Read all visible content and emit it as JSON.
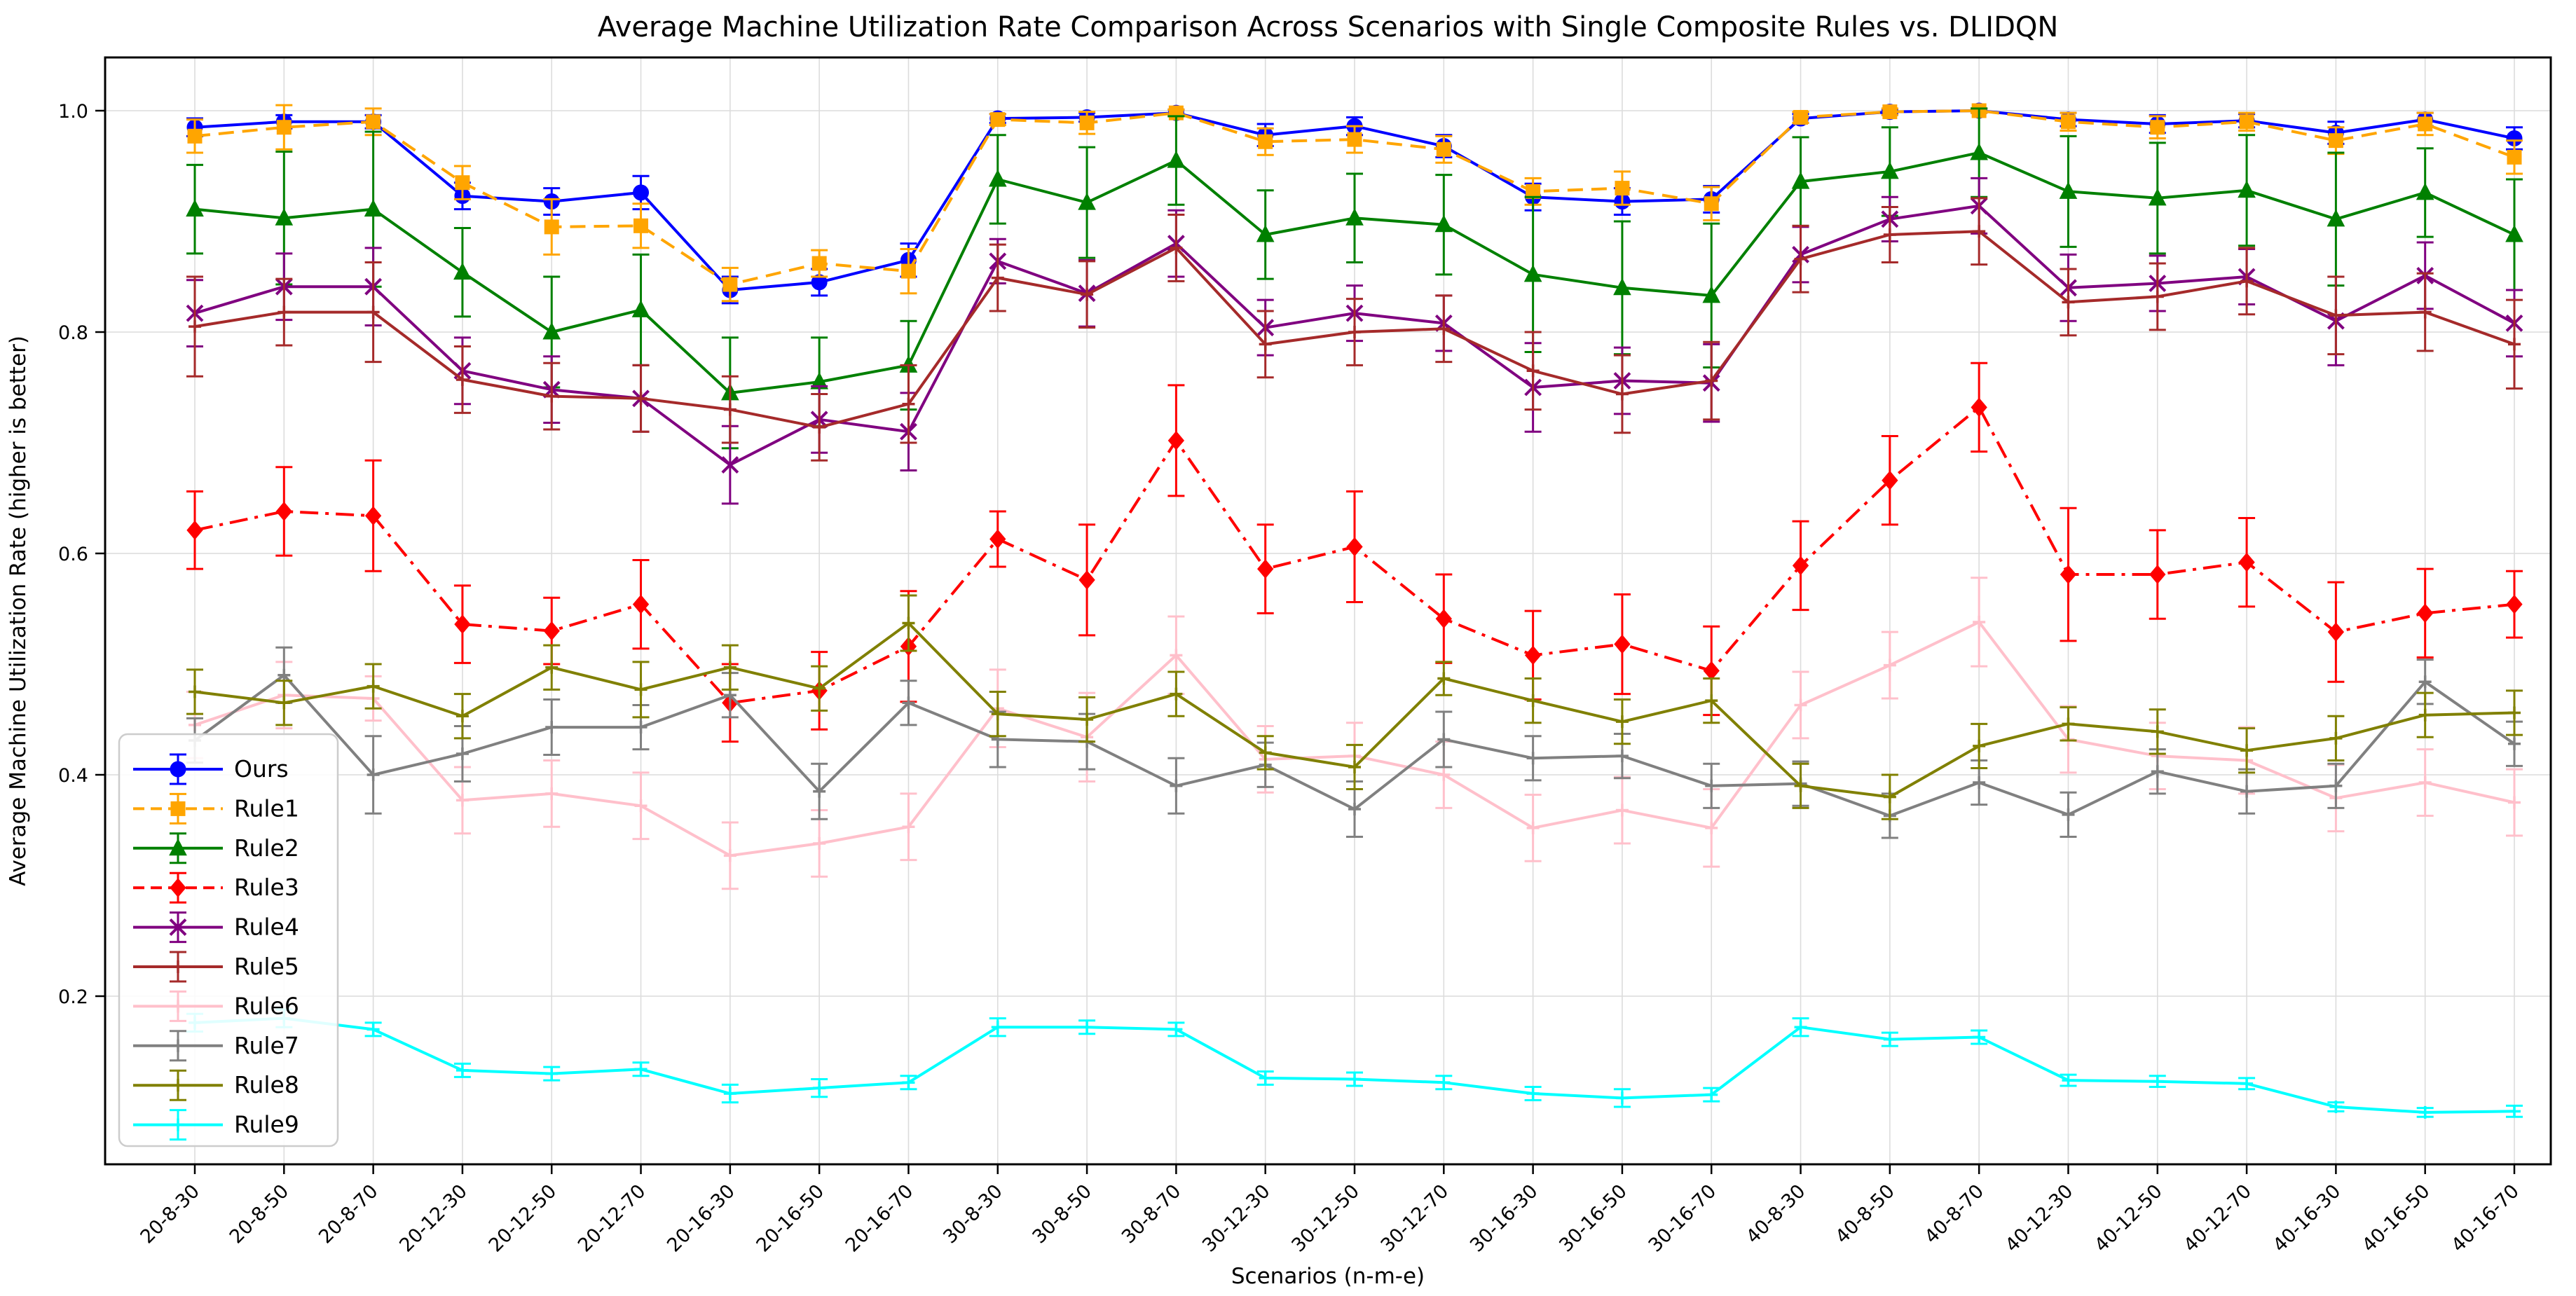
{
  "chart_data": {
    "type": "line",
    "title": "Average Machine Utilization Rate Comparison Across Scenarios with Single Composite Rules vs. DLIDQN",
    "xlabel": "Scenarios (n-m-e)",
    "ylabel": "Average Machine Utilization Rate (higher is better)",
    "grid": true,
    "legend_position": "lower-left",
    "ylim": [
      0.05,
      1.048
    ],
    "yticks": [
      0.2,
      0.4,
      0.6,
      0.8,
      1.0
    ],
    "categories": [
      "20-8-30",
      "20-8-50",
      "20-8-70",
      "20-12-30",
      "20-12-50",
      "20-12-70",
      "20-16-30",
      "20-16-50",
      "20-16-70",
      "30-8-30",
      "30-8-50",
      "30-8-70",
      "30-12-30",
      "30-12-50",
      "30-12-70",
      "30-16-30",
      "30-16-50",
      "30-16-70",
      "40-8-30",
      "40-8-50",
      "40-8-70",
      "40-12-30",
      "40-12-50",
      "40-12-70",
      "40-16-30",
      "40-16-50",
      "40-16-70"
    ],
    "series": [
      {
        "name": "Ours",
        "color": "#0000ff",
        "linestyle": "solid",
        "marker": "circle",
        "values": [
          0.985,
          0.99,
          0.99,
          0.923,
          0.918,
          0.926,
          0.838,
          0.845,
          0.865,
          0.993,
          0.994,
          0.998,
          0.978,
          0.986,
          0.968,
          0.922,
          0.918,
          0.92,
          0.993,
          0.999,
          1.0,
          0.992,
          0.988,
          0.991,
          0.98,
          0.992,
          0.975
        ],
        "errors": [
          0.008,
          0.006,
          0.006,
          0.012,
          0.012,
          0.015,
          0.012,
          0.012,
          0.015,
          0.004,
          0.004,
          0.003,
          0.01,
          0.008,
          0.01,
          0.012,
          0.012,
          0.012,
          0.004,
          0.002,
          0.002,
          0.006,
          0.008,
          0.006,
          0.01,
          0.006,
          0.01
        ]
      },
      {
        "name": "Rule1",
        "color": "#ffa500",
        "linestyle": "dashed",
        "marker": "square",
        "values": [
          0.977,
          0.985,
          0.99,
          0.935,
          0.895,
          0.896,
          0.843,
          0.862,
          0.855,
          0.992,
          0.989,
          0.998,
          0.972,
          0.974,
          0.965,
          0.927,
          0.93,
          0.916,
          0.994,
          0.999,
          1.0,
          0.99,
          0.985,
          0.99,
          0.973,
          0.988,
          0.958
        ],
        "errors": [
          0.015,
          0.02,
          0.012,
          0.015,
          0.025,
          0.02,
          0.015,
          0.012,
          0.02,
          0.005,
          0.01,
          0.003,
          0.012,
          0.012,
          0.012,
          0.012,
          0.015,
          0.015,
          0.005,
          0.003,
          0.002,
          0.008,
          0.01,
          0.008,
          0.012,
          0.01,
          0.015
        ]
      },
      {
        "name": "Rule2",
        "color": "#008000",
        "linestyle": "solid",
        "marker": "triangle",
        "values": [
          0.911,
          0.903,
          0.911,
          0.854,
          0.8,
          0.82,
          0.745,
          0.755,
          0.77,
          0.938,
          0.917,
          0.955,
          0.888,
          0.903,
          0.897,
          0.852,
          0.84,
          0.833,
          0.936,
          0.945,
          0.962,
          0.927,
          0.921,
          0.928,
          0.902,
          0.926,
          0.888
        ],
        "errors": [
          0.04,
          0.06,
          0.07,
          0.04,
          0.05,
          0.05,
          0.05,
          0.04,
          0.04,
          0.04,
          0.05,
          0.04,
          0.04,
          0.04,
          0.045,
          0.07,
          0.06,
          0.065,
          0.04,
          0.04,
          0.04,
          0.05,
          0.05,
          0.05,
          0.06,
          0.04,
          0.05
        ]
      },
      {
        "name": "Rule3",
        "color": "#ff0000",
        "linestyle": "dashdot",
        "marker": "diamond",
        "values": [
          0.621,
          0.638,
          0.634,
          0.536,
          0.53,
          0.554,
          0.465,
          0.476,
          0.516,
          0.613,
          0.576,
          0.702,
          0.586,
          0.606,
          0.541,
          0.508,
          0.518,
          0.494,
          0.589,
          0.666,
          0.732,
          0.581,
          0.581,
          0.592,
          0.529,
          0.546,
          0.554
        ],
        "errors": [
          0.035,
          0.04,
          0.05,
          0.035,
          0.03,
          0.04,
          0.035,
          0.035,
          0.05,
          0.025,
          0.05,
          0.05,
          0.04,
          0.05,
          0.04,
          0.04,
          0.045,
          0.04,
          0.04,
          0.04,
          0.04,
          0.06,
          0.04,
          0.04,
          0.045,
          0.04,
          0.03
        ]
      },
      {
        "name": "Rule4",
        "color": "#800080",
        "linestyle": "solid",
        "marker": "x",
        "values": [
          0.817,
          0.841,
          0.841,
          0.765,
          0.748,
          0.74,
          0.68,
          0.721,
          0.71,
          0.864,
          0.835,
          0.88,
          0.804,
          0.817,
          0.808,
          0.75,
          0.756,
          0.754,
          0.87,
          0.902,
          0.914,
          0.84,
          0.844,
          0.85,
          0.81,
          0.851,
          0.808
        ],
        "errors": [
          0.03,
          0.03,
          0.035,
          0.03,
          0.03,
          0.03,
          0.035,
          0.03,
          0.035,
          0.02,
          0.03,
          0.03,
          0.025,
          0.025,
          0.025,
          0.04,
          0.03,
          0.035,
          0.025,
          0.02,
          0.025,
          0.03,
          0.025,
          0.025,
          0.04,
          0.03,
          0.03
        ]
      },
      {
        "name": "Rule5",
        "color": "#a52a2a",
        "linestyle": "solid",
        "marker": "plus",
        "values": [
          0.805,
          0.818,
          0.818,
          0.757,
          0.742,
          0.74,
          0.73,
          0.714,
          0.735,
          0.849,
          0.834,
          0.876,
          0.789,
          0.8,
          0.803,
          0.765,
          0.744,
          0.756,
          0.866,
          0.888,
          0.891,
          0.827,
          0.832,
          0.846,
          0.815,
          0.818,
          0.789
        ],
        "errors": [
          0.045,
          0.03,
          0.045,
          0.03,
          0.03,
          0.03,
          0.03,
          0.03,
          0.035,
          0.03,
          0.03,
          0.03,
          0.03,
          0.03,
          0.03,
          0.035,
          0.035,
          0.035,
          0.03,
          0.025,
          0.03,
          0.03,
          0.03,
          0.03,
          0.035,
          0.035,
          0.04
        ]
      },
      {
        "name": "Rule6",
        "color": "#ffc0cb",
        "linestyle": "solid",
        "marker": "plus",
        "values": [
          0.445,
          0.472,
          0.469,
          0.377,
          0.383,
          0.372,
          0.327,
          0.338,
          0.353,
          0.46,
          0.434,
          0.508,
          0.414,
          0.417,
          0.4,
          0.352,
          0.368,
          0.352,
          0.463,
          0.499,
          0.538,
          0.432,
          0.417,
          0.413,
          0.379,
          0.393,
          0.375
        ],
        "errors": [
          0.03,
          0.03,
          0.02,
          0.03,
          0.03,
          0.03,
          0.03,
          0.03,
          0.03,
          0.035,
          0.04,
          0.035,
          0.03,
          0.03,
          0.03,
          0.03,
          0.03,
          0.035,
          0.03,
          0.03,
          0.04,
          0.03,
          0.03,
          0.03,
          0.03,
          0.03,
          0.03
        ]
      },
      {
        "name": "Rule7",
        "color": "#808080",
        "linestyle": "solid",
        "marker": "plus",
        "values": [
          0.431,
          0.49,
          0.4,
          0.419,
          0.443,
          0.443,
          0.472,
          0.385,
          0.465,
          0.432,
          0.43,
          0.39,
          0.409,
          0.369,
          0.432,
          0.415,
          0.417,
          0.39,
          0.392,
          0.363,
          0.393,
          0.364,
          0.403,
          0.385,
          0.39,
          0.484,
          0.428
        ],
        "errors": [
          0.02,
          0.025,
          0.035,
          0.025,
          0.025,
          0.02,
          0.02,
          0.025,
          0.02,
          0.025,
          0.025,
          0.025,
          0.02,
          0.025,
          0.025,
          0.02,
          0.02,
          0.02,
          0.02,
          0.02,
          0.02,
          0.02,
          0.02,
          0.02,
          0.02,
          0.02,
          0.02
        ]
      },
      {
        "name": "Rule8",
        "color": "#808000",
        "linestyle": "solid",
        "marker": "plus",
        "values": [
          0.475,
          0.465,
          0.48,
          0.453,
          0.497,
          0.477,
          0.497,
          0.478,
          0.537,
          0.455,
          0.45,
          0.473,
          0.42,
          0.407,
          0.487,
          0.467,
          0.448,
          0.467,
          0.39,
          0.38,
          0.426,
          0.446,
          0.439,
          0.422,
          0.433,
          0.454,
          0.456
        ],
        "errors": [
          0.02,
          0.02,
          0.02,
          0.02,
          0.02,
          0.025,
          0.02,
          0.02,
          0.025,
          0.02,
          0.02,
          0.02,
          0.015,
          0.02,
          0.015,
          0.02,
          0.02,
          0.02,
          0.02,
          0.02,
          0.02,
          0.015,
          0.02,
          0.02,
          0.02,
          0.02,
          0.02
        ]
      },
      {
        "name": "Rule9",
        "color": "#00ffff",
        "linestyle": "solid",
        "marker": "plus",
        "values": [
          0.176,
          0.18,
          0.17,
          0.133,
          0.13,
          0.134,
          0.112,
          0.117,
          0.122,
          0.172,
          0.172,
          0.17,
          0.126,
          0.125,
          0.122,
          0.112,
          0.108,
          0.111,
          0.172,
          0.161,
          0.163,
          0.124,
          0.123,
          0.121,
          0.1,
          0.095,
          0.096
        ],
        "errors": [
          0.008,
          0.008,
          0.006,
          0.006,
          0.006,
          0.006,
          0.008,
          0.008,
          0.006,
          0.008,
          0.006,
          0.006,
          0.006,
          0.006,
          0.006,
          0.006,
          0.008,
          0.006,
          0.008,
          0.006,
          0.006,
          0.005,
          0.005,
          0.005,
          0.004,
          0.004,
          0.005
        ]
      }
    ]
  }
}
